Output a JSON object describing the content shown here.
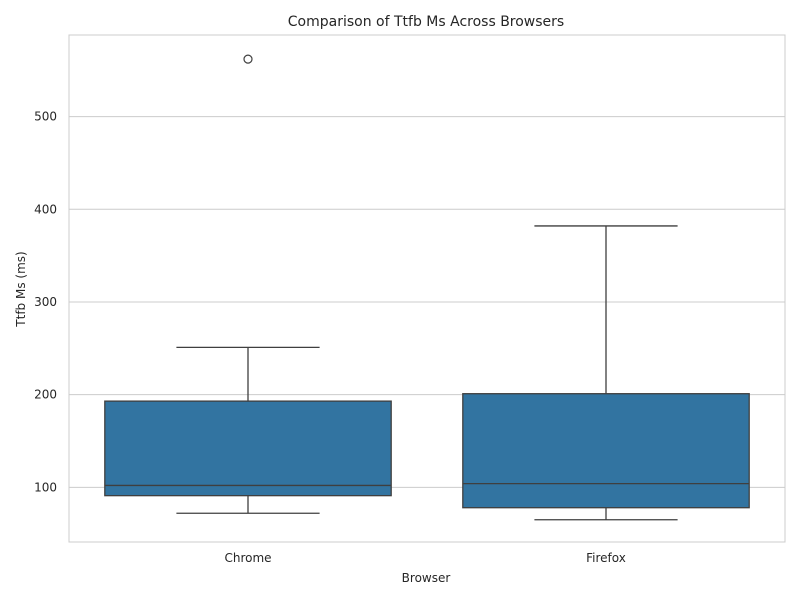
{
  "chart_data": {
    "type": "box",
    "title": "Comparison of Ttfb Ms Across Browsers",
    "xlabel": "Browser",
    "ylabel": "Ttfb Ms (ms)",
    "categories": [
      "Chrome",
      "Firefox"
    ],
    "ylim": [
      41,
      588
    ],
    "yticks": [
      100,
      200,
      300,
      400,
      500
    ],
    "grid": true,
    "box_color": "#3274a1",
    "line_color": "#3f3f3f",
    "boxes": [
      {
        "category": "Chrome",
        "whisker_low": 72,
        "q1": 91,
        "median": 102,
        "q3": 193,
        "whisker_high": 251,
        "outliers": [
          562
        ]
      },
      {
        "category": "Firefox",
        "whisker_low": 65,
        "q1": 78,
        "median": 104,
        "q3": 201,
        "whisker_high": 382,
        "outliers": []
      }
    ]
  }
}
